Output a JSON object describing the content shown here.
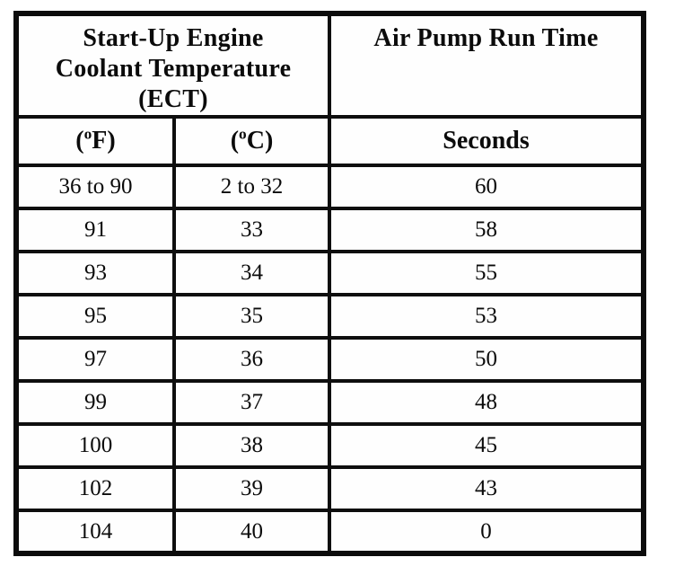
{
  "table": {
    "header": {
      "ect_title_lines": [
        "Start-Up Engine",
        "Coolant Temperature",
        "(ECT)"
      ],
      "runtime_title": "Air Pump Run Time"
    },
    "subheader": {
      "fahrenheit": {
        "open": "(",
        "degree": "o",
        "unit": "F)"
      },
      "celsius": {
        "open": "(",
        "degree": "o",
        "unit": "C)"
      },
      "seconds_label": "Seconds"
    },
    "rows": [
      {
        "f": "36 to 90",
        "c": "2 to 32",
        "s": "60"
      },
      {
        "f": "91",
        "c": "33",
        "s": "58"
      },
      {
        "f": "93",
        "c": "34",
        "s": "55"
      },
      {
        "f": "95",
        "c": "35",
        "s": "53"
      },
      {
        "f": "97",
        "c": "36",
        "s": "50"
      },
      {
        "f": "99",
        "c": "37",
        "s": "48"
      },
      {
        "f": "100",
        "c": "38",
        "s": "45"
      },
      {
        "f": "102",
        "c": "39",
        "s": "43"
      },
      {
        "f": "104",
        "c": "40",
        "s": "0"
      }
    ]
  },
  "colors": {
    "border": "#0e0e0e",
    "background": "#ffffff",
    "text": "#0b0b0b"
  }
}
